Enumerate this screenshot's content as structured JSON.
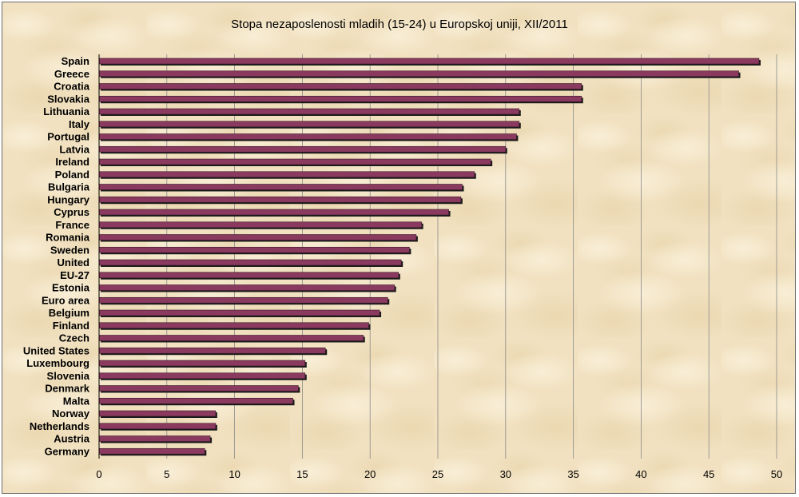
{
  "chart_data": {
    "type": "bar",
    "orientation": "horizontal",
    "title": "Stopa nezaposlenosti mladih (15-24) u Europskoj uniji, XII/2011",
    "xlabel": "",
    "ylabel": "",
    "xlim": [
      0,
      50
    ],
    "xticks": [
      "0",
      "5",
      "10",
      "15",
      "20",
      "25",
      "30",
      "35",
      "40",
      "45",
      "50"
    ],
    "grid": "vertical",
    "legend": "none",
    "bar_color": "#8a3a5e",
    "categories": [
      "Spain",
      "Greece",
      "Croatia",
      "Slovakia",
      "Lithuania",
      "Italy",
      "Portugal",
      "Latvia",
      "Ireland",
      "Poland",
      "Bulgaria",
      "Hungary",
      "Cyprus",
      "France",
      "Romania",
      "Sweden",
      "United",
      "EU-27",
      "Estonia",
      "Euro area",
      "Belgium",
      "Finland",
      "Czech",
      "United States",
      "Luxembourg",
      "Slovenia",
      "Denmark",
      "Malta",
      "Norway",
      "Netherlands",
      "Austria",
      "Germany"
    ],
    "values": [
      48.7,
      47.2,
      35.6,
      35.6,
      31.0,
      31.0,
      30.8,
      30.0,
      28.9,
      27.7,
      26.8,
      26.7,
      25.8,
      23.8,
      23.4,
      22.9,
      22.3,
      22.1,
      21.8,
      21.3,
      20.7,
      19.9,
      19.5,
      16.7,
      15.2,
      15.2,
      14.7,
      14.3,
      8.6,
      8.6,
      8.2,
      7.8
    ]
  }
}
